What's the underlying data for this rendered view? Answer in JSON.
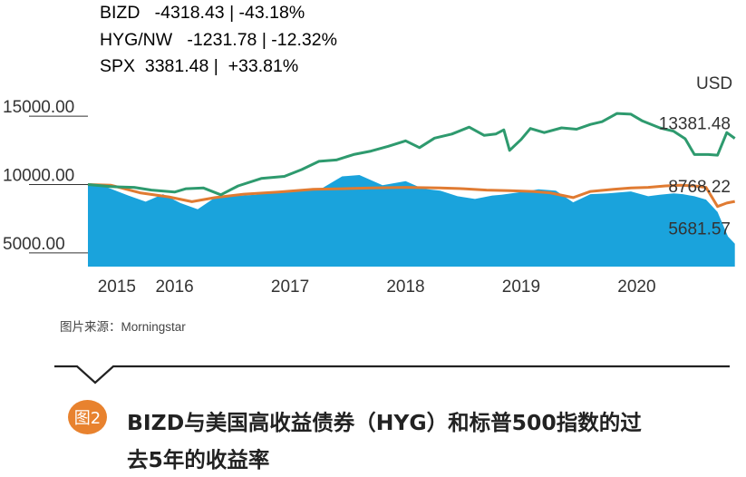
{
  "legend": [
    {
      "name": "BIZD",
      "text": "BIZD   -4318.43 | -43.18%",
      "color": "#1aa3dc"
    },
    {
      "name": "HYG/NW",
      "text": "HYG/NW   -1231.78 | -12.32%",
      "color": "#e07b32"
    },
    {
      "name": "SPX",
      "text": "SPX  3381.48 |  +33.81%",
      "color": "#2e9a6e"
    }
  ],
  "source": "图片来源：Morningstar",
  "figure_badge": "图2",
  "caption_line1": "BIZD与美国高收益债券（HYG）和标普500指数的过",
  "caption_line2": "去5年的收益率",
  "chart_data": {
    "type": "area",
    "currency_label": "USD",
    "ylim": [
      4000,
      17000
    ],
    "xlim": [
      2014.75,
      2020.36
    ],
    "y_ticks": [
      {
        "label": "15000.00",
        "value": 15000
      },
      {
        "label": "10000.00",
        "value": 10000
      },
      {
        "label": "5000.00",
        "value": 5000
      }
    ],
    "x_ticks": [
      {
        "label": "2015",
        "value": 2015.0
      },
      {
        "label": "2016",
        "value": 2015.5
      },
      {
        "label": "2017",
        "value": 2016.5
      },
      {
        "label": "2018",
        "value": 2017.5
      },
      {
        "label": "2019",
        "value": 2018.5
      },
      {
        "label": "2020",
        "value": 2019.5
      }
    ],
    "end_labels": [
      {
        "series": "SPX",
        "label": "13381.48",
        "value": 13381.48
      },
      {
        "series": "HYG/NW",
        "label": "8768.22",
        "value": 8768.22
      },
      {
        "series": "BIZD",
        "label": "5681.57",
        "value": 5681.57
      }
    ],
    "series": [
      {
        "name": "BIZD",
        "color": "#1aa3dc",
        "kind": "area",
        "x": [
          2014.75,
          2014.9,
          2015.1,
          2015.25,
          2015.4,
          2015.55,
          2015.7,
          2015.85,
          2016.0,
          2016.2,
          2016.4,
          2016.6,
          2016.75,
          2016.95,
          2017.1,
          2017.3,
          2017.5,
          2017.65,
          2017.8,
          2017.95,
          2018.1,
          2018.25,
          2018.33,
          2018.5,
          2018.65,
          2018.8,
          2018.95,
          2019.1,
          2019.25,
          2019.45,
          2019.6,
          2019.7,
          2019.82,
          2019.9,
          2020.0,
          2020.1,
          2020.2,
          2020.29,
          2020.35
        ],
        "y": [
          10000,
          9850,
          9200,
          8750,
          9300,
          8650,
          8200,
          9050,
          9150,
          9250,
          9500,
          9550,
          9600,
          10600,
          10700,
          9950,
          10250,
          9700,
          9550,
          9150,
          8950,
          9200,
          9250,
          9450,
          9650,
          9550,
          8700,
          9300,
          9350,
          9500,
          9150,
          9250,
          9350,
          9300,
          9150,
          8900,
          8000,
          6200,
          5680
        ]
      },
      {
        "name": "HYG/NW",
        "color": "#e07b32",
        "kind": "line",
        "x": [
          2014.75,
          2014.95,
          2015.2,
          2015.45,
          2015.65,
          2015.85,
          2016.1,
          2016.4,
          2016.7,
          2016.95,
          2017.2,
          2017.5,
          2017.8,
          2018.0,
          2018.2,
          2018.4,
          2018.6,
          2018.75,
          2018.95,
          2019.1,
          2019.3,
          2019.45,
          2019.6,
          2019.75,
          2019.88,
          2020.0,
          2020.1,
          2020.2,
          2020.28,
          2020.35
        ],
        "y": [
          10000,
          9950,
          9400,
          9100,
          8750,
          9050,
          9300,
          9450,
          9650,
          9700,
          9750,
          9800,
          9750,
          9700,
          9600,
          9550,
          9500,
          9400,
          9050,
          9500,
          9650,
          9750,
          9800,
          9900,
          9950,
          9900,
          9800,
          8400,
          8650,
          8770
        ]
      },
      {
        "name": "SPX",
        "color": "#2e9a6e",
        "kind": "line",
        "x": [
          2014.75,
          2014.95,
          2015.15,
          2015.3,
          2015.5,
          2015.6,
          2015.75,
          2015.9,
          2016.05,
          2016.25,
          2016.45,
          2016.6,
          2016.75,
          2016.9,
          2017.05,
          2017.2,
          2017.35,
          2017.5,
          2017.62,
          2017.75,
          2017.9,
          2018.05,
          2018.18,
          2018.28,
          2018.35,
          2018.4,
          2018.5,
          2018.58,
          2018.7,
          2018.85,
          2018.98,
          2019.1,
          2019.2,
          2019.33,
          2019.45,
          2019.55,
          2019.7,
          2019.82,
          2019.92,
          2020.0,
          2020.12,
          2020.2,
          2020.28,
          2020.35
        ],
        "y": [
          10000,
          9850,
          9800,
          9600,
          9450,
          9700,
          9750,
          9250,
          9900,
          10450,
          10600,
          11100,
          11700,
          11800,
          12200,
          12450,
          12800,
          13200,
          12700,
          13400,
          13700,
          14200,
          13600,
          13700,
          14000,
          12500,
          13300,
          14100,
          13800,
          14150,
          14050,
          14400,
          14600,
          15200,
          15150,
          14650,
          14150,
          13900,
          13350,
          12200,
          12200,
          12150,
          13800,
          13380
        ]
      }
    ]
  }
}
